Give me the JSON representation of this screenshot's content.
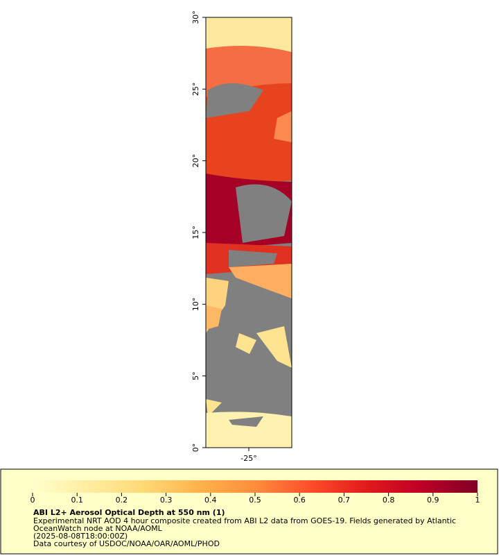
{
  "map": {
    "title": "ABI L2+ Aerosol Optical Depth at 550 nm (1)",
    "notes": [
      "Experimental NRT AOD 4 hour composite created from ABI L2 data from GOES-19. Fields generated by Atlantic",
      "OceanWatch node at NOAA/AOML",
      "(2025-08-08T18:00:00Z)",
      "Data courtesy of USDOC/NOAA/OAR/AOML/PHOD"
    ],
    "xlim": [
      -28,
      -22
    ],
    "ylim": [
      0,
      30
    ],
    "xticks": [
      {
        "value": -25,
        "label": "-25°"
      }
    ],
    "yticks": [
      {
        "value": 0,
        "label": "0°"
      },
      {
        "value": 5,
        "label": "5°"
      },
      {
        "value": 10,
        "label": "10°"
      },
      {
        "value": 15,
        "label": "15°"
      },
      {
        "value": 20,
        "label": "20°"
      },
      {
        "value": 25,
        "label": "25°"
      },
      {
        "value": 30,
        "label": "30°"
      }
    ],
    "colorbar": {
      "lim": [
        0,
        1
      ],
      "ticks": [
        0,
        0.1,
        0.2,
        0.3,
        0.4,
        0.5,
        0.6,
        0.7,
        0.8,
        0.9,
        1
      ],
      "colors": [
        "#ffffcc",
        "#ffeda0",
        "#fed976",
        "#feb24c",
        "#fd8d3c",
        "#fc4e2a",
        "#e31a1c",
        "#bd0026",
        "#800026"
      ]
    }
  }
}
